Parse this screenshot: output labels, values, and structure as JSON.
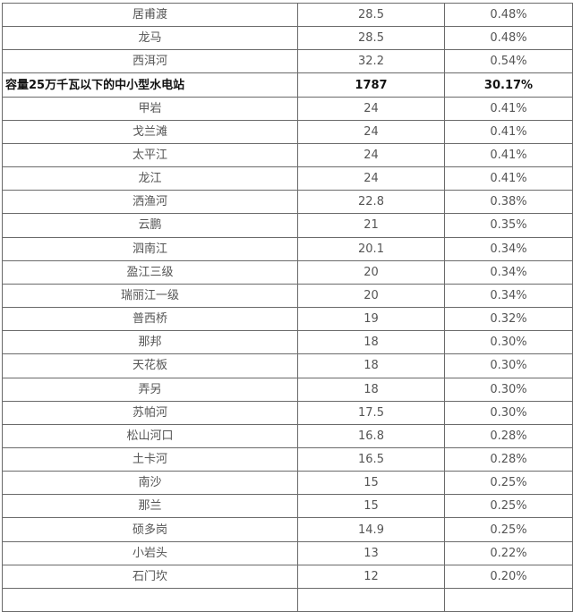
{
  "rows": [
    {
      "name": "居甫渡",
      "capacity": "28.5",
      "share": "0.48%"
    },
    {
      "name": "龙马",
      "capacity": "28.5",
      "share": "0.48%"
    },
    {
      "name": "西洱河",
      "capacity": "32.2",
      "share": "0.54%"
    },
    {
      "name": "容量25万千瓦以下的中小型水电站",
      "capacity": "1787",
      "share": "30.17%",
      "bold": true
    },
    {
      "name": "甲岩",
      "capacity": "24",
      "share": "0.41%"
    },
    {
      "name": "戈兰滩",
      "capacity": "24",
      "share": "0.41%"
    },
    {
      "name": "太平江",
      "capacity": "24",
      "share": "0.41%"
    },
    {
      "name": "龙江",
      "capacity": "24",
      "share": "0.41%"
    },
    {
      "name": "洒渔河",
      "capacity": "22.8",
      "share": "0.38%"
    },
    {
      "name": "云鹏",
      "capacity": "21",
      "share": "0.35%"
    },
    {
      "name": "泗南江",
      "capacity": "20.1",
      "share": "0.34%"
    },
    {
      "name": "盈江三级",
      "capacity": "20",
      "share": "0.34%"
    },
    {
      "name": "瑞丽江一级",
      "capacity": "20",
      "share": "0.34%"
    },
    {
      "name": "普西桥",
      "capacity": "19",
      "share": "0.32%"
    },
    {
      "name": "那邦",
      "capacity": "18",
      "share": "0.30%"
    },
    {
      "name": "天花板",
      "capacity": "18",
      "share": "0.30%"
    },
    {
      "name": "弄另",
      "capacity": "18",
      "share": "0.30%"
    },
    {
      "name": "苏帕河",
      "capacity": "17.5",
      "share": "0.30%"
    },
    {
      "name": "松山河口",
      "capacity": "16.8",
      "share": "0.28%"
    },
    {
      "name": "土卡河",
      "capacity": "16.5",
      "share": "0.28%"
    },
    {
      "name": "南沙",
      "capacity": "15",
      "share": "0.25%"
    },
    {
      "name": "那兰",
      "capacity": "15",
      "share": "0.25%"
    },
    {
      "name": "硕多岗",
      "capacity": "14.9",
      "share": "0.25%"
    },
    {
      "name": "小岩头",
      "capacity": "13",
      "share": "0.22%"
    },
    {
      "name": "石门坎",
      "capacity": "12",
      "share": "0.20%"
    }
  ]
}
